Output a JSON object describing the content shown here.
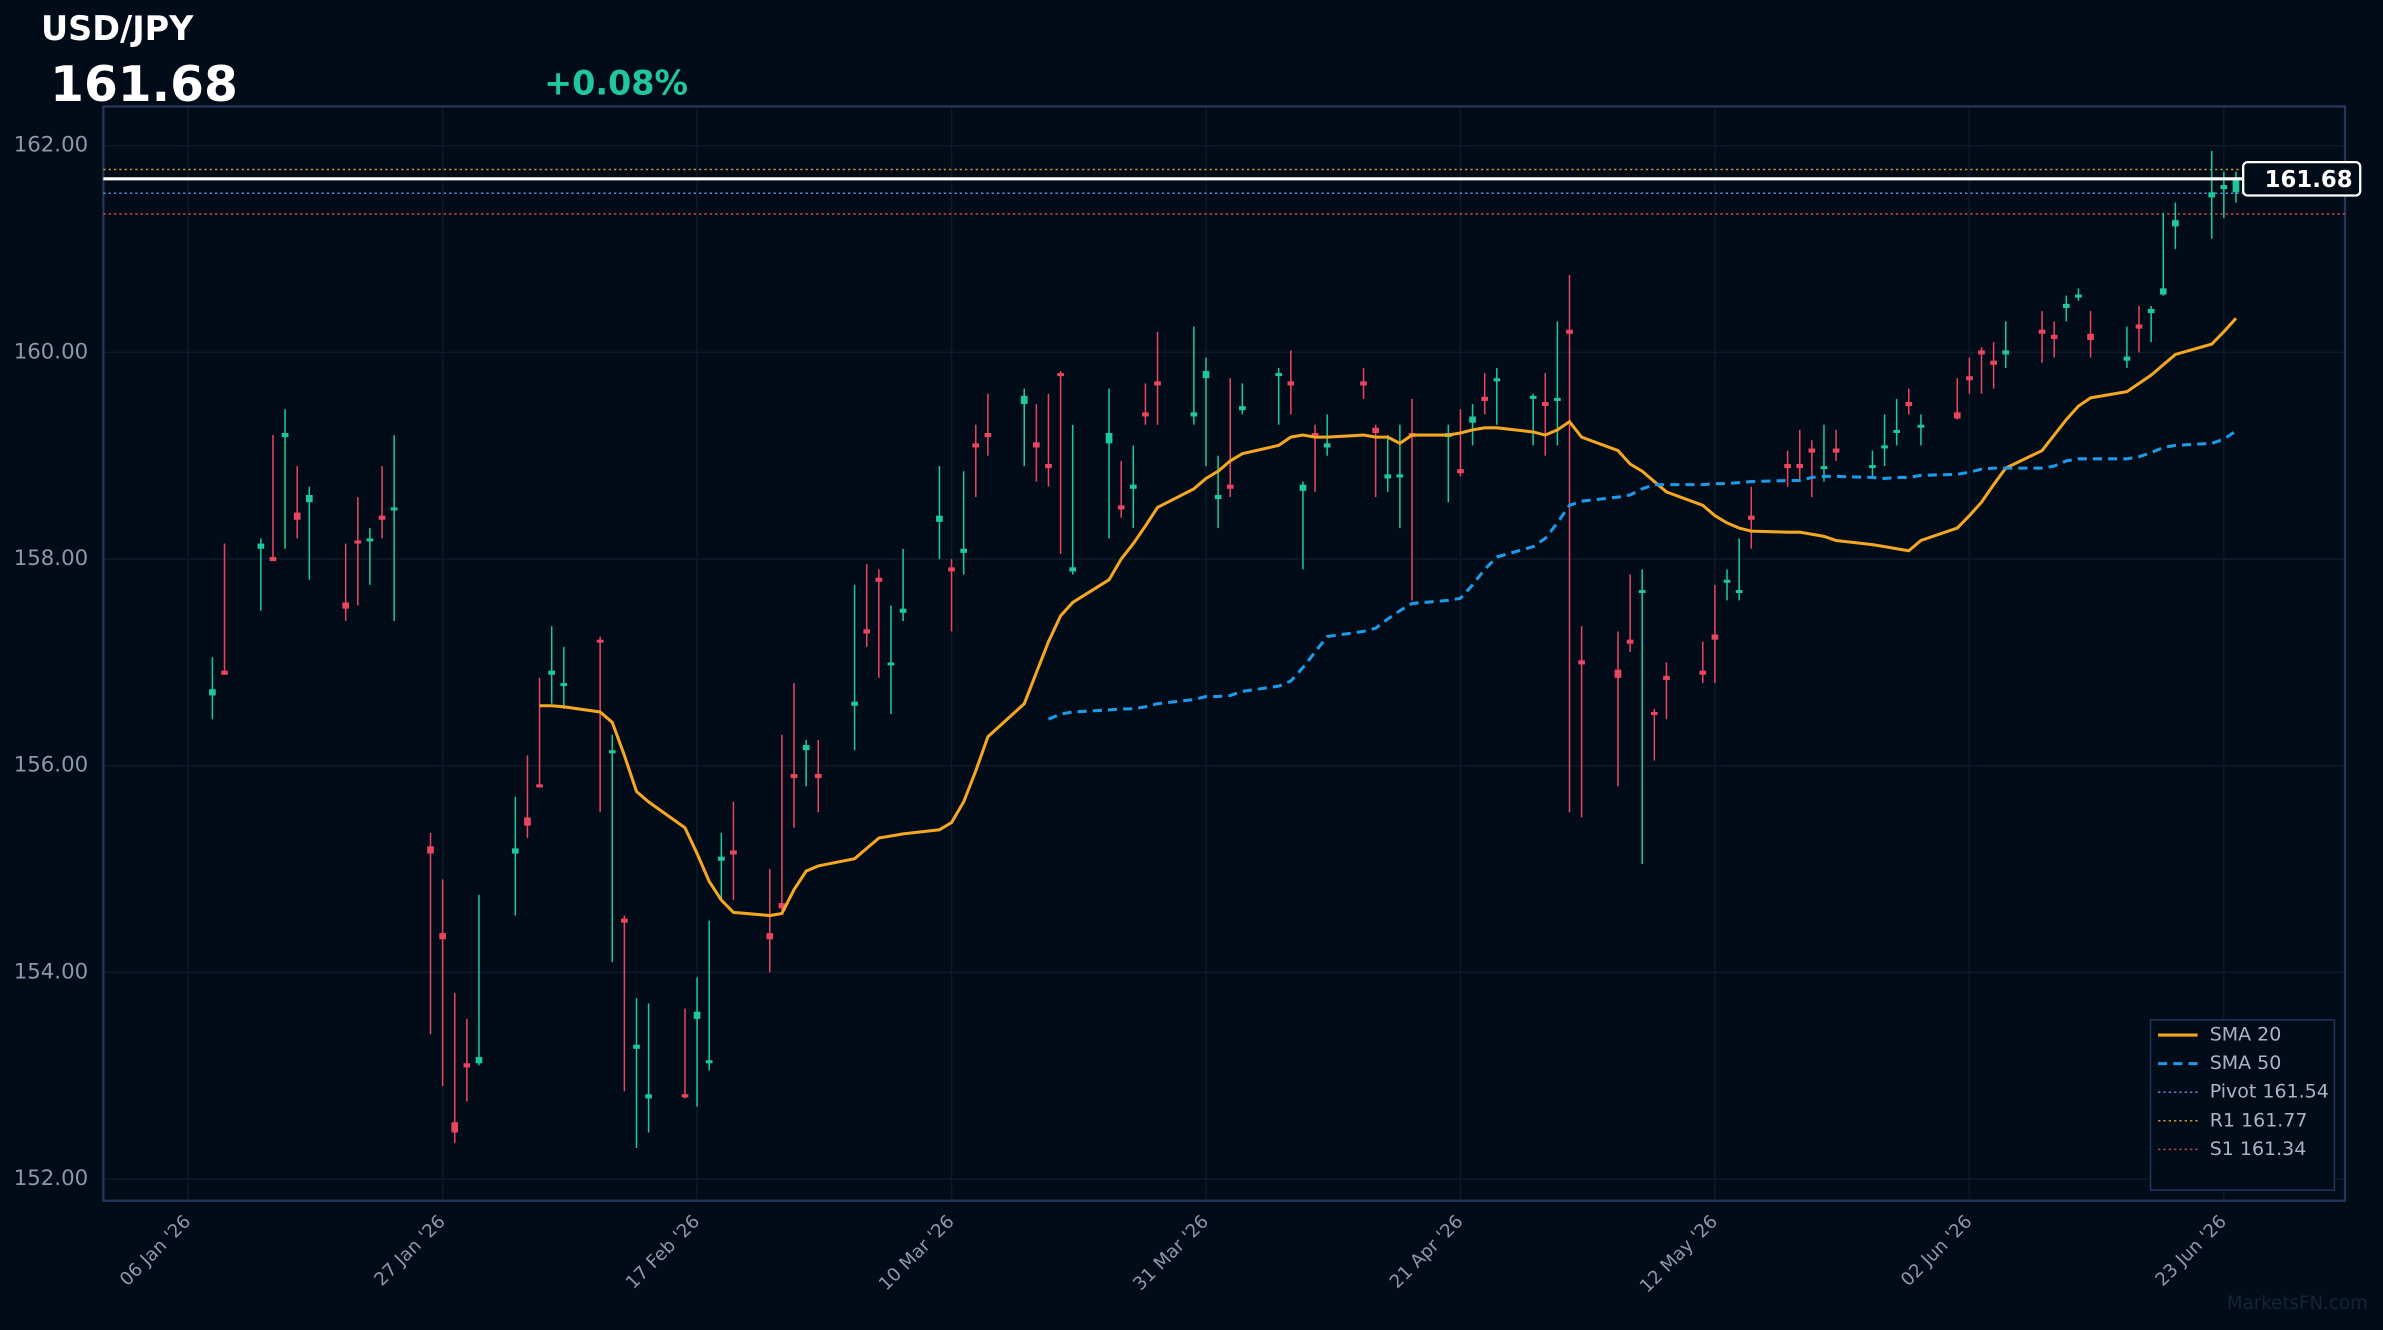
{
  "chart_data": {
    "type": "candlestick",
    "title": "USD/JPY",
    "last_price": 161.68,
    "change": "+0.08%",
    "watermark": "MarketsFN.com",
    "up_color": "#1fc79a",
    "down_color": "#e8455f",
    "x": [
      "2026-01-08",
      "2026-01-09",
      "2026-01-12",
      "2026-01-13",
      "2026-01-14",
      "2026-01-15",
      "2026-01-16",
      "2026-01-19",
      "2026-01-20",
      "2026-01-21",
      "2026-01-22",
      "2026-01-23",
      "2026-01-26",
      "2026-01-27",
      "2026-01-28",
      "2026-01-29",
      "2026-01-30",
      "2026-02-02",
      "2026-02-03",
      "2026-02-04",
      "2026-02-05",
      "2026-02-06",
      "2026-02-09",
      "2026-02-10",
      "2026-02-11",
      "2026-02-12",
      "2026-02-13",
      "2026-02-16",
      "2026-02-17",
      "2026-02-18",
      "2026-02-19",
      "2026-02-20",
      "2026-02-23",
      "2026-02-24",
      "2026-02-25",
      "2026-02-26",
      "2026-02-27",
      "2026-03-02",
      "2026-03-03",
      "2026-03-04",
      "2026-03-05",
      "2026-03-06",
      "2026-03-09",
      "2026-03-10",
      "2026-03-11",
      "2026-03-12",
      "2026-03-13",
      "2026-03-16",
      "2026-03-17",
      "2026-03-18",
      "2026-03-19",
      "2026-03-20",
      "2026-03-23",
      "2026-03-24",
      "2026-03-25",
      "2026-03-26",
      "2026-03-27",
      "2026-03-30",
      "2026-03-31",
      "2026-04-01",
      "2026-04-02",
      "2026-04-03",
      "2026-04-06",
      "2026-04-07",
      "2026-04-08",
      "2026-04-09",
      "2026-04-10",
      "2026-04-13",
      "2026-04-14",
      "2026-04-15",
      "2026-04-16",
      "2026-04-17",
      "2026-04-20",
      "2026-04-21",
      "2026-04-22",
      "2026-04-23",
      "2026-04-24",
      "2026-04-27",
      "2026-04-28",
      "2026-04-29",
      "2026-04-30",
      "2026-05-01",
      "2026-05-04",
      "2026-05-05",
      "2026-05-06",
      "2026-05-07",
      "2026-05-08",
      "2026-05-11",
      "2026-05-12",
      "2026-05-13",
      "2026-05-14",
      "2026-05-15",
      "2026-05-18",
      "2026-05-19",
      "2026-05-20",
      "2026-05-21",
      "2026-05-22",
      "2026-05-25",
      "2026-05-26",
      "2026-05-27",
      "2026-05-28",
      "2026-05-29",
      "2026-06-01",
      "2026-06-02",
      "2026-06-03",
      "2026-06-04",
      "2026-06-05",
      "2026-06-08",
      "2026-06-09",
      "2026-06-10",
      "2026-06-11",
      "2026-06-12",
      "2026-06-15",
      "2026-06-16",
      "2026-06-17",
      "2026-06-18",
      "2026-06-19",
      "2026-06-22",
      "2026-06-23",
      "2026-06-24"
    ],
    "open": [
      156.68,
      156.92,
      158.1,
      158.02,
      159.18,
      158.45,
      158.55,
      157.58,
      158.18,
      158.18,
      158.42,
      158.48,
      155.22,
      154.38,
      152.55,
      153.12,
      153.12,
      155.15,
      155.5,
      155.82,
      156.88,
      156.78,
      157.22,
      156.12,
      154.52,
      153.26,
      152.78,
      152.82,
      153.55,
      153.12,
      155.08,
      155.18,
      154.38,
      154.67,
      155.92,
      156.15,
      155.92,
      156.58,
      157.32,
      157.82,
      156.98,
      157.48,
      158.36,
      157.92,
      158.06,
      159.12,
      159.22,
      159.5,
      159.13,
      158.92,
      159.8,
      157.88,
      159.12,
      158.52,
      158.68,
      159.42,
      159.72,
      159.38,
      159.75,
      158.58,
      158.72,
      159.44,
      159.78,
      159.72,
      158.66,
      159.22,
      159.08,
      159.72,
      159.27,
      158.78,
      158.79,
      159.22,
      159.18,
      158.87,
      159.32,
      159.57,
      159.72,
      159.56,
      159.52,
      159.53,
      160.22,
      157.02,
      156.93,
      157.22,
      157.68,
      156.52,
      156.87,
      156.92,
      157.27,
      157.78,
      157.68,
      158.42,
      158.92,
      158.92,
      159.07,
      158.88,
      159.07,
      158.89,
      159.08,
      159.22,
      159.52,
      159.28,
      159.42,
      159.77,
      160.02,
      159.92,
      159.98,
      160.22,
      160.17,
      160.43,
      160.53,
      160.18,
      159.92,
      160.27,
      160.38,
      160.56,
      161.22,
      161.5,
      161.58,
      161.55
    ],
    "high": [
      157.05,
      158.15,
      158.2,
      159.2,
      159.45,
      158.9,
      158.7,
      158.15,
      158.6,
      158.3,
      158.9,
      159.2,
      155.35,
      154.9,
      153.8,
      153.55,
      154.75,
      155.7,
      156.1,
      156.85,
      157.35,
      157.15,
      157.25,
      156.3,
      154.55,
      153.75,
      153.7,
      153.65,
      153.95,
      154.5,
      155.35,
      155.65,
      155.0,
      156.3,
      156.8,
      156.25,
      156.25,
      157.75,
      157.95,
      157.9,
      157.55,
      158.1,
      158.9,
      158.0,
      158.85,
      159.3,
      159.6,
      159.65,
      159.5,
      159.6,
      159.82,
      159.3,
      159.65,
      158.95,
      159.1,
      159.7,
      160.2,
      160.25,
      159.95,
      159.0,
      159.75,
      159.7,
      159.85,
      160.02,
      158.75,
      159.3,
      159.4,
      159.85,
      159.3,
      159.2,
      159.3,
      159.55,
      159.3,
      159.45,
      159.5,
      159.8,
      159.85,
      159.6,
      159.8,
      160.3,
      160.75,
      157.35,
      157.3,
      157.85,
      157.9,
      156.55,
      157.0,
      157.2,
      157.75,
      157.9,
      158.2,
      158.7,
      159.05,
      159.25,
      159.15,
      159.3,
      159.25,
      159.05,
      159.4,
      159.55,
      159.65,
      159.4,
      159.75,
      159.95,
      160.05,
      160.1,
      160.3,
      160.4,
      160.3,
      160.55,
      160.62,
      160.4,
      160.25,
      160.45,
      160.45,
      161.35,
      161.45,
      161.95,
      161.75,
      161.75
    ],
    "low": [
      156.45,
      156.88,
      157.5,
      157.98,
      158.1,
      158.2,
      157.8,
      157.4,
      157.55,
      157.75,
      158.2,
      157.4,
      153.4,
      152.9,
      152.35,
      152.75,
      153.1,
      154.55,
      155.3,
      155.79,
      156.6,
      156.55,
      155.55,
      154.1,
      152.85,
      152.3,
      152.45,
      152.78,
      152.7,
      153.05,
      154.7,
      154.7,
      154.0,
      154.6,
      155.4,
      155.8,
      155.55,
      156.15,
      157.15,
      156.85,
      156.5,
      157.4,
      158.0,
      157.3,
      157.85,
      158.6,
      159.0,
      158.9,
      158.75,
      158.7,
      158.05,
      157.85,
      158.2,
      158.4,
      158.3,
      159.3,
      159.3,
      159.3,
      158.9,
      158.3,
      158.6,
      159.4,
      159.3,
      159.4,
      157.9,
      158.65,
      159.0,
      159.55,
      158.6,
      158.65,
      158.3,
      157.6,
      158.55,
      158.8,
      159.1,
      159.4,
      159.3,
      159.1,
      159.0,
      159.1,
      155.55,
      155.5,
      155.8,
      157.1,
      155.05,
      156.05,
      156.45,
      156.8,
      156.8,
      157.6,
      157.6,
      158.1,
      158.7,
      158.75,
      158.6,
      158.75,
      158.95,
      158.8,
      158.9,
      159.1,
      159.4,
      159.1,
      159.35,
      159.6,
      159.6,
      159.65,
      159.85,
      159.9,
      159.95,
      160.3,
      160.5,
      159.95,
      159.85,
      160.0,
      160.1,
      160.55,
      161.0,
      161.1,
      161.3,
      161.45
    ],
    "close": [
      156.74,
      156.88,
      158.15,
      157.98,
      159.22,
      158.38,
      158.62,
      157.52,
      158.15,
      158.2,
      158.38,
      158.5,
      155.15,
      154.32,
      152.45,
      153.08,
      153.18,
      155.2,
      155.42,
      155.79,
      156.92,
      156.8,
      157.2,
      156.15,
      154.48,
      153.3,
      152.82,
      152.79,
      153.62,
      153.15,
      155.12,
      155.14,
      154.32,
      154.62,
      155.88,
      156.2,
      155.88,
      156.62,
      157.28,
      157.78,
      157.0,
      157.52,
      158.42,
      157.88,
      158.1,
      159.08,
      159.18,
      159.58,
      159.08,
      158.88,
      159.78,
      157.92,
      159.22,
      158.48,
      158.72,
      159.38,
      159.68,
      159.42,
      159.82,
      158.62,
      158.68,
      159.48,
      159.8,
      159.68,
      158.72,
      159.18,
      159.12,
      159.68,
      159.22,
      158.82,
      158.82,
      159.18,
      159.22,
      158.83,
      159.38,
      159.53,
      159.75,
      159.58,
      159.48,
      159.56,
      160.18,
      156.98,
      156.85,
      157.18,
      157.7,
      156.5,
      156.83,
      156.88,
      157.22,
      157.8,
      157.7,
      158.38,
      158.88,
      158.88,
      159.03,
      158.9,
      159.03,
      158.91,
      159.1,
      159.25,
      159.48,
      159.3,
      159.36,
      159.73,
      159.98,
      159.88,
      160.02,
      160.18,
      160.13,
      160.47,
      160.56,
      160.12,
      159.96,
      160.23,
      160.42,
      160.62,
      161.28,
      161.55,
      161.62,
      161.68
    ],
    "series": [
      {
        "name": "SMA 20",
        "color": "#f5a623",
        "style": "solid",
        "values": [
          null,
          null,
          null,
          null,
          null,
          null,
          null,
          null,
          null,
          null,
          null,
          null,
          null,
          null,
          null,
          null,
          null,
          null,
          null,
          156.58,
          156.58,
          156.57,
          156.52,
          156.42,
          156.1,
          155.75,
          155.65,
          155.4,
          155.15,
          154.88,
          154.7,
          154.58,
          154.55,
          154.57,
          154.8,
          154.98,
          155.03,
          155.1,
          155.2,
          155.3,
          155.32,
          155.34,
          155.38,
          155.45,
          155.65,
          155.95,
          156.28,
          156.6,
          156.9,
          157.2,
          157.45,
          157.58,
          157.8,
          158.0,
          158.15,
          158.32,
          158.5,
          158.68,
          158.78,
          158.85,
          158.95,
          159.02,
          159.1,
          159.18,
          159.2,
          159.18,
          159.18,
          159.2,
          159.18,
          159.18,
          159.12,
          159.2,
          159.2,
          159.22,
          159.25,
          159.27,
          159.27,
          159.23,
          159.2,
          159.25,
          159.33,
          159.18,
          159.05,
          158.92,
          158.85,
          158.75,
          158.65,
          158.52,
          158.42,
          158.35,
          158.3,
          158.27,
          158.26,
          158.26,
          158.24,
          158.22,
          158.18,
          158.14,
          158.12,
          158.1,
          158.08,
          158.18,
          158.3,
          158.42,
          158.55,
          158.72,
          158.88,
          159.05,
          159.2,
          159.35,
          159.48,
          159.56,
          159.62,
          159.7,
          159.78,
          159.88,
          159.98,
          160.08,
          160.2,
          160.33
        ]
      },
      {
        "name": "SMA 50",
        "color": "#1e9be8",
        "style": "dashed",
        "values": [
          null,
          null,
          null,
          null,
          null,
          null,
          null,
          null,
          null,
          null,
          null,
          null,
          null,
          null,
          null,
          null,
          null,
          null,
          null,
          null,
          null,
          null,
          null,
          null,
          null,
          null,
          null,
          null,
          null,
          null,
          null,
          null,
          null,
          null,
          null,
          null,
          null,
          null,
          null,
          null,
          null,
          null,
          null,
          null,
          null,
          null,
          null,
          null,
          null,
          156.45,
          156.5,
          156.52,
          156.54,
          156.55,
          156.55,
          156.57,
          156.6,
          156.64,
          156.67,
          156.67,
          156.68,
          156.72,
          156.77,
          156.82,
          156.95,
          157.1,
          157.25,
          157.3,
          157.33,
          157.42,
          157.5,
          157.57,
          157.6,
          157.62,
          157.75,
          157.9,
          158.02,
          158.12,
          158.2,
          158.35,
          158.52,
          158.56,
          158.6,
          158.62,
          158.68,
          158.72,
          158.72,
          158.72,
          158.73,
          158.73,
          158.74,
          158.75,
          158.76,
          158.76,
          158.79,
          158.8,
          158.8,
          158.79,
          158.78,
          158.79,
          158.79,
          158.81,
          158.82,
          158.84,
          158.87,
          158.88,
          158.88,
          158.88,
          158.9,
          158.95,
          158.97,
          158.97,
          158.97,
          158.99,
          159.03,
          159.08,
          159.1,
          159.12,
          159.16,
          159.24
        ]
      }
    ],
    "levels": [
      {
        "name": "Pivot 161.54",
        "value": 161.54,
        "color": "#5a8fd8",
        "style": "dotted"
      },
      {
        "name": "R1 161.77",
        "value": 161.77,
        "color": "#c9962a",
        "style": "dotted"
      },
      {
        "name": "S1 161.34",
        "value": 161.34,
        "color": "#c9453f",
        "style": "dotted"
      }
    ],
    "xlim": [
      "2025-12-30",
      "2026-07-03"
    ],
    "xticks": [
      {
        "value": "2026-01-06",
        "label": "06 Jan '26"
      },
      {
        "value": "2026-01-27",
        "label": "27 Jan '26"
      },
      {
        "value": "2026-02-17",
        "label": "17 Feb '26"
      },
      {
        "value": "2026-03-10",
        "label": "10 Mar '26"
      },
      {
        "value": "2026-03-31",
        "label": "31 Mar '26"
      },
      {
        "value": "2026-04-21",
        "label": "21 Apr '26"
      },
      {
        "value": "2026-05-12",
        "label": "12 May '26"
      },
      {
        "value": "2026-06-02",
        "label": "02 Jun '26"
      },
      {
        "value": "2026-06-23",
        "label": "23 Jun '26"
      }
    ],
    "ylim": [
      151.79,
      162.38
    ],
    "yticks": [
      {
        "value": 152,
        "label": "152.00"
      },
      {
        "value": 154,
        "label": "154.00"
      },
      {
        "value": 156,
        "label": "156.00"
      },
      {
        "value": 158,
        "label": "158.00"
      },
      {
        "value": 160,
        "label": "160.00"
      },
      {
        "value": 162,
        "label": "162.00"
      }
    ],
    "grid": true,
    "legend": "lower right"
  }
}
